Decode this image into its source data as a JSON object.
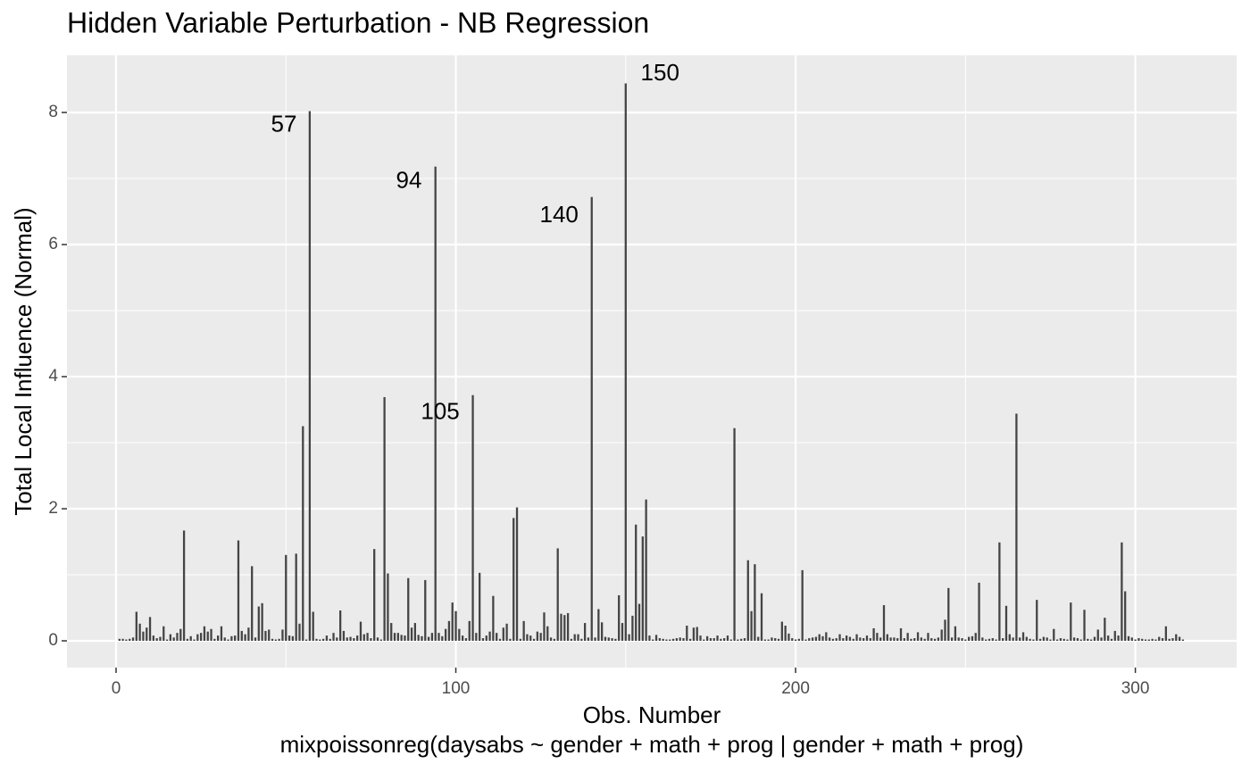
{
  "chart_data": {
    "type": "bar",
    "title": "Hidden Variable Perturbation - NB Regression",
    "xlabel": "Obs. Number",
    "caption": "mixpoissonreg(daysabs ~ gender + math + prog | gender + math + prog)",
    "ylabel": "Total Local Influence (Normal)",
    "color": "#444444",
    "background": "#ebebeb",
    "grid": true,
    "xlim": [
      -14.45,
      329.8
    ],
    "ylim": [
      -0.405,
      8.865
    ],
    "xticks": [
      0,
      100,
      200,
      300
    ],
    "yticks": [
      0,
      2,
      4,
      6,
      8
    ],
    "minor_xticks": [
      50,
      150,
      250
    ],
    "minor_yticks": [
      1,
      3,
      5,
      7
    ],
    "annotations": [
      {
        "text": "57",
        "x": 49.4,
        "y": 7.8
      },
      {
        "text": "94",
        "x": 86.2,
        "y": 6.95
      },
      {
        "text": "105",
        "x": 95.4,
        "y": 3.45
      },
      {
        "text": "140",
        "x": 130.4,
        "y": 6.43
      },
      {
        "text": "150",
        "x": 160.1,
        "y": 8.58
      }
    ],
    "x": [
      1,
      2,
      3,
      4,
      5,
      6,
      7,
      8,
      9,
      10,
      11,
      12,
      13,
      14,
      15,
      16,
      17,
      18,
      19,
      20,
      21,
      22,
      23,
      24,
      25,
      26,
      27,
      28,
      29,
      30,
      31,
      32,
      33,
      34,
      35,
      36,
      37,
      38,
      39,
      40,
      41,
      42,
      43,
      44,
      45,
      46,
      47,
      48,
      49,
      50,
      51,
      52,
      53,
      54,
      55,
      56,
      57,
      58,
      59,
      60,
      61,
      62,
      63,
      64,
      65,
      66,
      67,
      68,
      69,
      70,
      71,
      72,
      73,
      74,
      75,
      76,
      77,
      78,
      79,
      80,
      81,
      82,
      83,
      84,
      85,
      86,
      87,
      88,
      89,
      90,
      91,
      92,
      93,
      94,
      95,
      96,
      97,
      98,
      99,
      100,
      101,
      102,
      103,
      104,
      105,
      106,
      107,
      108,
      109,
      110,
      111,
      112,
      113,
      114,
      115,
      116,
      117,
      118,
      119,
      120,
      121,
      122,
      123,
      124,
      125,
      126,
      127,
      128,
      129,
      130,
      131,
      132,
      133,
      134,
      135,
      136,
      137,
      138,
      139,
      140,
      141,
      142,
      143,
      144,
      145,
      146,
      147,
      148,
      149,
      150,
      151,
      152,
      153,
      154,
      155,
      156,
      157,
      158,
      159,
      160,
      161,
      162,
      163,
      164,
      165,
      166,
      167,
      168,
      169,
      170,
      171,
      172,
      173,
      174,
      175,
      176,
      177,
      178,
      179,
      180,
      181,
      182,
      183,
      184,
      185,
      186,
      187,
      188,
      189,
      190,
      191,
      192,
      193,
      194,
      195,
      196,
      197,
      198,
      199,
      200,
      201,
      202,
      203,
      204,
      205,
      206,
      207,
      208,
      209,
      210,
      211,
      212,
      213,
      214,
      215,
      216,
      217,
      218,
      219,
      220,
      221,
      222,
      223,
      224,
      225,
      226,
      227,
      228,
      229,
      230,
      231,
      232,
      233,
      234,
      235,
      236,
      237,
      238,
      239,
      240,
      241,
      242,
      243,
      244,
      245,
      246,
      247,
      248,
      249,
      250,
      251,
      252,
      253,
      254,
      255,
      256,
      257,
      258,
      259,
      260,
      261,
      262,
      263,
      264,
      265,
      266,
      267,
      268,
      269,
      270,
      271,
      272,
      273,
      274,
      275,
      276,
      277,
      278,
      279,
      280,
      281,
      282,
      283,
      284,
      285,
      286,
      287,
      288,
      289,
      290,
      291,
      292,
      293,
      294,
      295,
      296,
      297,
      298,
      299,
      300,
      301,
      302,
      303,
      304,
      305,
      306,
      307,
      308,
      309,
      310,
      311,
      312,
      313,
      314
    ],
    "values": [
      0.03,
      0.03,
      0.02,
      0.03,
      0.05,
      0.44,
      0.26,
      0.14,
      0.2,
      0.36,
      0.08,
      0.04,
      0.06,
      0.22,
      0.02,
      0.1,
      0.05,
      0.12,
      0.18,
      1.67,
      0.03,
      0.07,
      0.02,
      0.1,
      0.12,
      0.22,
      0.14,
      0.18,
      0.03,
      0.08,
      0.22,
      0.05,
      0.02,
      0.07,
      0.08,
      1.52,
      0.15,
      0.1,
      0.2,
      1.13,
      0.05,
      0.52,
      0.57,
      0.15,
      0.17,
      0.03,
      0.02,
      0.03,
      0.17,
      1.3,
      0.08,
      0.07,
      1.32,
      0.26,
      3.25,
      0.02,
      8.02,
      0.44,
      0.03,
      0.02,
      0.03,
      0.08,
      0.03,
      0.12,
      0.05,
      0.46,
      0.15,
      0.05,
      0.06,
      0.04,
      0.08,
      0.29,
      0.1,
      0.12,
      0.04,
      1.39,
      0.05,
      0.02,
      3.69,
      1.02,
      0.27,
      0.12,
      0.12,
      0.09,
      0.08,
      0.95,
      0.2,
      0.27,
      0.09,
      0.07,
      0.92,
      0.06,
      0.12,
      7.18,
      0.12,
      0.07,
      0.18,
      0.3,
      0.58,
      0.45,
      0.18,
      0.08,
      0.04,
      0.3,
      3.72,
      0.12,
      1.03,
      0.04,
      0.08,
      0.14,
      0.68,
      0.12,
      0.03,
      0.2,
      0.26,
      0.03,
      1.86,
      2.02,
      0.03,
      0.3,
      0.1,
      0.08,
      0.03,
      0.14,
      0.12,
      0.43,
      0.22,
      0.05,
      0.03,
      1.4,
      0.41,
      0.39,
      0.42,
      0.03,
      0.1,
      0.1,
      0.03,
      0.27,
      0.05,
      6.72,
      0.05,
      0.48,
      0.28,
      0.06,
      0.05,
      0.04,
      0.03,
      0.69,
      0.27,
      8.44,
      0.1,
      0.38,
      1.76,
      0.56,
      1.58,
      2.14,
      0.08,
      0.02,
      0.09,
      0.04,
      0.03,
      0.02,
      0.02,
      0.03,
      0.04,
      0.05,
      0.04,
      0.23,
      0.03,
      0.2,
      0.21,
      0.08,
      0.02,
      0.07,
      0.04,
      0.04,
      0.08,
      0.03,
      0.04,
      0.08,
      0.02,
      3.22,
      0.02,
      0.03,
      0.04,
      1.22,
      0.45,
      1.16,
      0.06,
      0.72,
      0.02,
      0.02,
      0.05,
      0.04,
      0.03,
      0.29,
      0.23,
      0.11,
      0.04,
      0.02,
      0.03,
      1.07,
      0.02,
      0.04,
      0.05,
      0.06,
      0.1,
      0.07,
      0.13,
      0.05,
      0.03,
      0.04,
      0.1,
      0.04,
      0.08,
      0.06,
      0.03,
      0.1,
      0.05,
      0.04,
      0.08,
      0.04,
      0.19,
      0.12,
      0.05,
      0.54,
      0.1,
      0.05,
      0.05,
      0.04,
      0.19,
      0.04,
      0.12,
      0.03,
      0.04,
      0.13,
      0.05,
      0.03,
      0.12,
      0.04,
      0.03,
      0.05,
      0.17,
      0.32,
      0.8,
      0.05,
      0.22,
      0.05,
      0.04,
      0.02,
      0.06,
      0.07,
      0.12,
      0.88,
      0.05,
      0.02,
      0.03,
      0.04,
      0.02,
      1.49,
      0.04,
      0.53,
      0.1,
      0.05,
      3.44,
      0.05,
      0.13,
      0.06,
      0.03,
      0.02,
      0.62,
      0.03,
      0.06,
      0.05,
      0.02,
      0.18,
      0.02,
      0.04,
      0.03,
      0.02,
      0.58,
      0.05,
      0.04,
      0.02,
      0.47,
      0.03,
      0.02,
      0.06,
      0.17,
      0.05,
      0.35,
      0.08,
      0.03,
      0.15,
      0.08,
      1.49,
      0.75,
      0.07,
      0.05,
      0.02,
      0.04,
      0.03,
      0.02,
      0.02,
      0.03,
      0.02,
      0.06,
      0.04,
      0.22,
      0.03,
      0.04,
      0.1,
      0.06,
      0.02
    ]
  }
}
